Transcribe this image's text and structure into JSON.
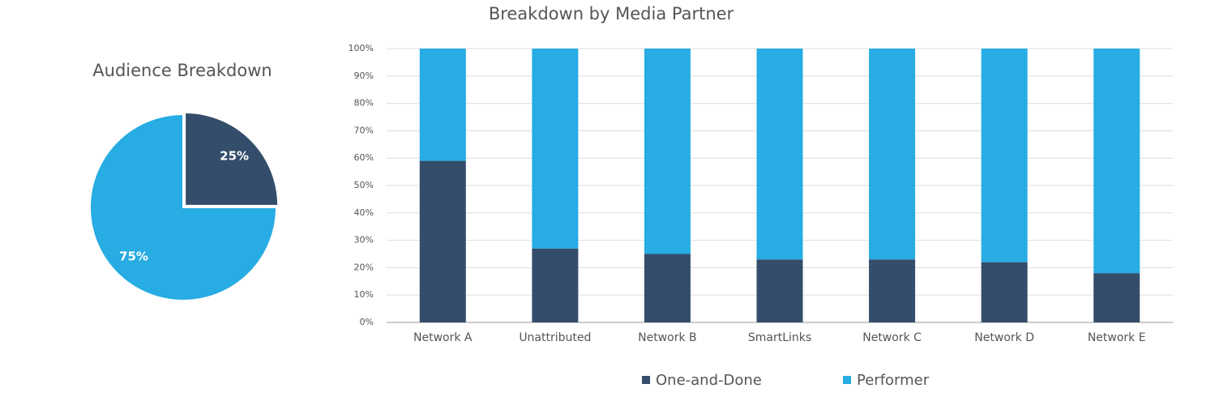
{
  "chart_data": [
    {
      "type": "pie",
      "title": "Audience Breakdown",
      "values": [
        25,
        75
      ],
      "value_labels": [
        "25%",
        "75%"
      ],
      "colors": [
        "#344d6b",
        "#27ace3"
      ]
    },
    {
      "type": "stacked_bar",
      "title": "Breakdown by Media Partner",
      "categories": [
        "Network A",
        "Unattributed",
        "Network B",
        "SmartLinks",
        "Network C",
        "Network D",
        "Network E"
      ],
      "series": [
        {
          "name": "One-and-Done",
          "color": "#344d6b",
          "values": [
            59,
            27,
            25,
            23,
            23,
            22,
            18
          ]
        },
        {
          "name": "Performer",
          "color": "#27ace3",
          "values": [
            41,
            73,
            75,
            77,
            77,
            78,
            82
          ]
        }
      ],
      "ylim": [
        0,
        100
      ],
      "yticks": [
        {
          "value": 0,
          "label": "0%"
        },
        {
          "value": 10,
          "label": "10%"
        },
        {
          "value": 20,
          "label": "20%"
        },
        {
          "value": 30,
          "label": "30%"
        },
        {
          "value": 40,
          "label": "40%"
        },
        {
          "value": 50,
          "label": "50%"
        },
        {
          "value": 60,
          "label": "60%"
        },
        {
          "value": 70,
          "label": "70%"
        },
        {
          "value": 80,
          "label": "80%"
        },
        {
          "value": 90,
          "label": "90%"
        },
        {
          "value": 100,
          "label": "100%"
        }
      ],
      "grid": true,
      "legend": "bottom"
    }
  ]
}
